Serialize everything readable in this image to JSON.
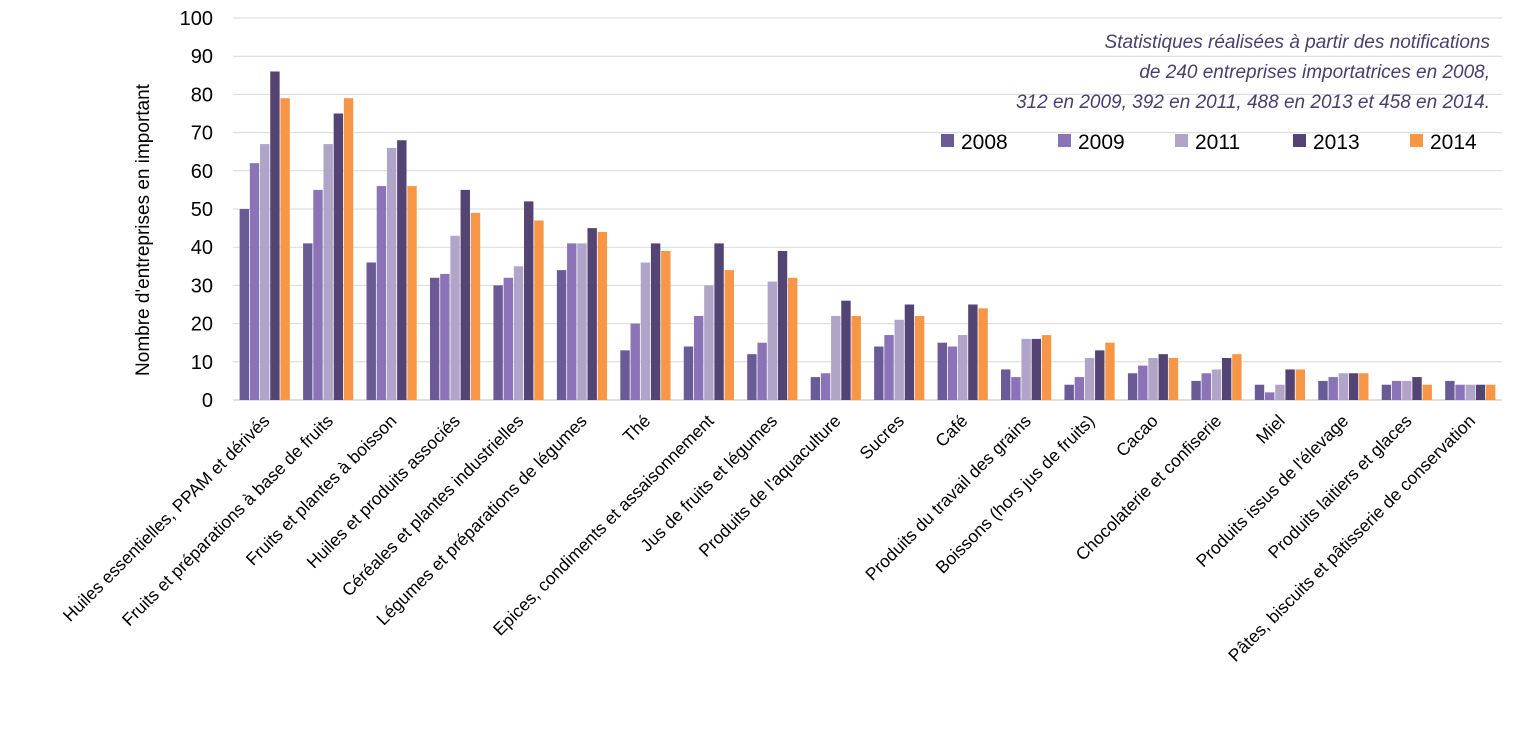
{
  "chart_data": {
    "type": "bar",
    "ylabel": "Nombre d'entreprises en important",
    "ylim": [
      0,
      100
    ],
    "yticks": [
      0,
      10,
      20,
      30,
      40,
      50,
      60,
      70,
      80,
      90,
      100
    ],
    "grid": true,
    "legend_position": "top-right",
    "annotation": [
      "Statistiques réalisées à partir des notifications",
      "de 240 entreprises importatrices en 2008,",
      "312 en 2009,  392 en 2011,  488 en 2013 et 458 en 2014."
    ],
    "categories": [
      "Huiles essentielles, PPAM et dérivés",
      "Fruits et préparations à base de fruits",
      "Fruits et plantes à boisson",
      "Huiles et produits associés",
      "Céréales et plantes industrielles",
      "Légumes et préparations de légumes",
      "Thé",
      "Epices, condiments et assaisonnement",
      "Jus de fruits et légumes",
      "Produits de l'aquaculture",
      "Sucres",
      "Café",
      "Produits du travail des grains",
      "Boissons (hors jus de fruits)",
      "Cacao",
      "Chocolaterie et confiserie",
      "Miel",
      "Produits issus de l'élevage",
      "Produits laitiers et glaces",
      "Pâtes, biscuits et pâtisserie de conservation"
    ],
    "series": [
      {
        "name": "2008",
        "color": "#6a5a96",
        "values": [
          50,
          41,
          36,
          32,
          30,
          34,
          13,
          14,
          12,
          6,
          14,
          15,
          8,
          4,
          7,
          5,
          4,
          5,
          4,
          5
        ]
      },
      {
        "name": "2009",
        "color": "#8b73b8",
        "values": [
          62,
          55,
          56,
          33,
          32,
          41,
          20,
          22,
          15,
          7,
          17,
          14,
          6,
          6,
          9,
          7,
          2,
          6,
          5,
          4
        ]
      },
      {
        "name": "2011",
        "color": "#b0a5c8",
        "values": [
          67,
          67,
          66,
          43,
          35,
          41,
          36,
          30,
          31,
          22,
          21,
          17,
          16,
          11,
          11,
          8,
          4,
          7,
          5,
          4
        ]
      },
      {
        "name": "2013",
        "color": "#544474",
        "values": [
          86,
          75,
          68,
          55,
          52,
          45,
          41,
          41,
          39,
          26,
          25,
          25,
          16,
          13,
          12,
          11,
          8,
          7,
          6,
          4
        ]
      },
      {
        "name": "2014",
        "color": "#f79646",
        "values": [
          79,
          79,
          56,
          49,
          47,
          44,
          39,
          34,
          32,
          22,
          22,
          24,
          17,
          15,
          11,
          12,
          8,
          7,
          4,
          4
        ]
      }
    ]
  }
}
